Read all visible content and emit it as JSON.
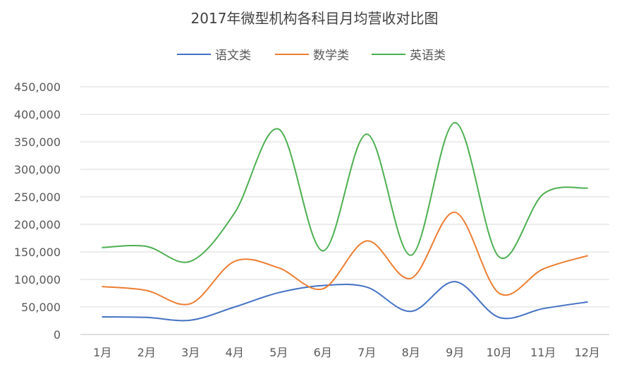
{
  "chart_data": {
    "type": "line",
    "title": "2017年微型机构各科目月均营收对比图",
    "categories": [
      "1月",
      "2月",
      "3月",
      "4月",
      "5月",
      "6月",
      "7月",
      "8月",
      "9月",
      "10月",
      "11月",
      "12月"
    ],
    "ylim": [
      0,
      450000
    ],
    "yticks": [
      0,
      50000,
      100000,
      150000,
      200000,
      250000,
      300000,
      350000,
      400000,
      450000
    ],
    "ytick_labels": [
      "0",
      "50,000",
      "100,000",
      "150,000",
      "200,000",
      "250,000",
      "300,000",
      "350,000",
      "400,000",
      "450,000"
    ],
    "grid": true,
    "smooth": true,
    "legend_position": "top",
    "series": [
      {
        "name": "语文类",
        "color": "#4472C4",
        "values": [
          32000,
          31000,
          26000,
          50000,
          76000,
          89000,
          86000,
          42000,
          96000,
          31000,
          47000,
          59000
        ]
      },
      {
        "name": "数学类",
        "color": "#ED7D31",
        "values": [
          87000,
          80000,
          56000,
          133000,
          121000,
          83000,
          170000,
          102000,
          222000,
          75000,
          119000,
          143000
        ]
      },
      {
        "name": "英语类",
        "color": "#4CAF50",
        "values": [
          158000,
          160000,
          133000,
          221000,
          373000,
          152000,
          364000,
          144000,
          385000,
          141000,
          255000,
          266000
        ]
      }
    ]
  }
}
